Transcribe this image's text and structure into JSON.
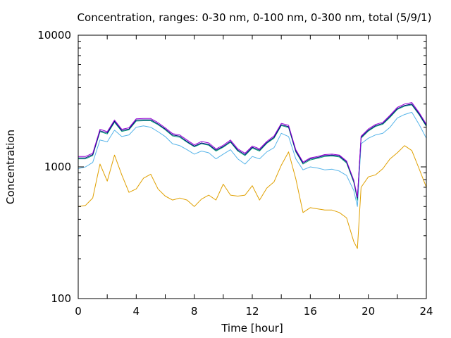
{
  "chart_data": {
    "type": "line",
    "title": "Concentration, ranges: 0-30 nm, 0-100 nm, 0-300 nm, total (5/9/1)",
    "xlabel": "Time [hour]",
    "ylabel": "Concentration",
    "xlim": [
      0,
      24
    ],
    "ylim": [
      100,
      10000
    ],
    "yscale": "log",
    "grid": false,
    "legend": "none",
    "x_ticks": [
      "0",
      "4",
      "8",
      "12",
      "16",
      "20",
      "24"
    ],
    "y_ticks": [
      "100",
      "1000",
      "10000"
    ],
    "x": [
      0,
      0.5,
      1,
      1.5,
      2,
      2.5,
      3,
      3.5,
      4,
      4.5,
      5,
      5.5,
      6,
      6.5,
      7,
      7.5,
      8,
      8.5,
      9,
      9.5,
      10,
      10.5,
      11,
      11.5,
      12,
      12.5,
      13,
      13.5,
      14,
      14.5,
      15,
      15.5,
      16,
      16.5,
      17,
      17.5,
      18,
      18.5,
      19,
      19.25,
      19.5,
      20,
      20.5,
      21,
      21.5,
      22,
      22.5,
      23,
      23.5,
      24
    ],
    "series": [
      {
        "color": "#e0a000",
        "values": [
          500,
          510,
          580,
          1050,
          780,
          1230,
          870,
          640,
          680,
          820,
          880,
          680,
          600,
          560,
          580,
          560,
          500,
          570,
          610,
          560,
          740,
          610,
          600,
          610,
          720,
          560,
          690,
          770,
          1030,
          1300,
          810,
          450,
          490,
          480,
          470,
          470,
          450,
          410,
          270,
          240,
          700,
          840,
          870,
          970,
          1150,
          1280,
          1450,
          1330,
          970,
          700
        ]
      },
      {
        "color": "#56b4e9",
        "values": [
          970,
          1000,
          1080,
          1600,
          1550,
          1900,
          1700,
          1750,
          2000,
          2050,
          2000,
          1850,
          1700,
          1500,
          1450,
          1350,
          1250,
          1320,
          1280,
          1150,
          1250,
          1350,
          1150,
          1050,
          1200,
          1150,
          1300,
          1400,
          1800,
          1700,
          1150,
          950,
          1000,
          980,
          950,
          960,
          930,
          860,
          660,
          500,
          1500,
          1650,
          1750,
          1800,
          2000,
          2350,
          2500,
          2600,
          2100,
          1650
        ]
      },
      {
        "color": "#009e73",
        "values": [
          1150,
          1150,
          1220,
          1850,
          1780,
          2180,
          1860,
          1910,
          2230,
          2240,
          2240,
          2090,
          1910,
          1720,
          1680,
          1540,
          1420,
          1500,
          1460,
          1320,
          1410,
          1540,
          1320,
          1220,
          1390,
          1320,
          1510,
          1650,
          2060,
          1990,
          1300,
          1050,
          1130,
          1160,
          1200,
          1210,
          1190,
          1070,
          760,
          560,
          1650,
          1870,
          2030,
          2110,
          2380,
          2730,
          2890,
          2960,
          2490,
          2030
        ]
      },
      {
        "color": "#000080",
        "values": [
          1170,
          1170,
          1240,
          1880,
          1810,
          2220,
          1890,
          1940,
          2270,
          2280,
          2280,
          2120,
          1940,
          1750,
          1710,
          1560,
          1440,
          1520,
          1480,
          1340,
          1430,
          1560,
          1340,
          1240,
          1410,
          1340,
          1530,
          1680,
          2090,
          2020,
          1320,
          1070,
          1150,
          1180,
          1220,
          1230,
          1210,
          1090,
          780,
          580,
          1680,
          1900,
          2060,
          2140,
          2420,
          2770,
          2930,
          3000,
          2530,
          2060
        ]
      },
      {
        "color": "#9400d3",
        "values": [
          1200,
          1200,
          1270,
          1930,
          1850,
          2270,
          1930,
          1980,
          2320,
          2330,
          2330,
          2170,
          1980,
          1790,
          1750,
          1600,
          1470,
          1560,
          1520,
          1370,
          1460,
          1600,
          1370,
          1270,
          1440,
          1370,
          1560,
          1720,
          2140,
          2070,
          1350,
          1090,
          1170,
          1200,
          1240,
          1250,
          1230,
          1110,
          790,
          590,
          1710,
          1940,
          2100,
          2180,
          2470,
          2830,
          3000,
          3080,
          2590,
          2110
        ]
      }
    ]
  }
}
